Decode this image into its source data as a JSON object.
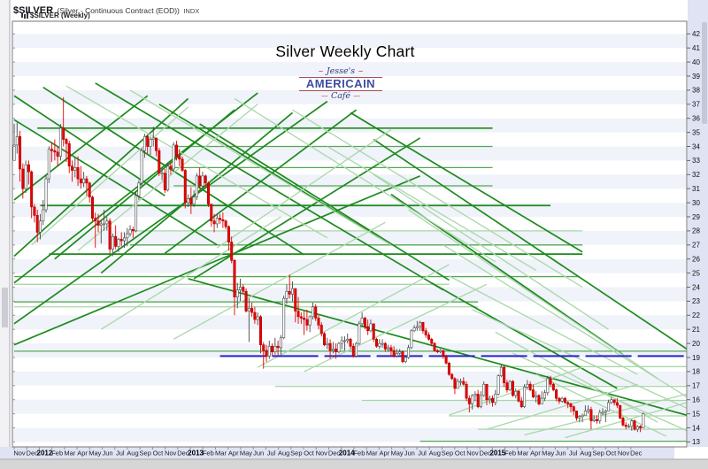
{
  "header": {
    "symbol": "$SILVER",
    "description": "(Silver - Continuous Contract (EOD))",
    "index_tag": "INDX",
    "series_label": "$SILVER (Weekly)"
  },
  "title": "Silver Weekly Chart",
  "logo": {
    "script_top": "Jesse's",
    "main": "AMERICAIN",
    "script_bottom": "Café"
  },
  "colors": {
    "up_body": "#ffffff",
    "up_border": "#4a4a4a",
    "down_body": "#e80000",
    "down_border": "#b00000",
    "trend_dark": "#1d8a1d",
    "trend_mid": "#55a855",
    "trend_light": "#a9d7a9",
    "support_blue": "#2626cc",
    "band": "#f0f3fa",
    "axis_bg": "#dfe3f3",
    "plot_border": "#777777",
    "label": "#111111",
    "month_label": "#222222"
  },
  "y_axis": {
    "min": 13,
    "max": 42,
    "ticks": [
      42,
      41,
      40,
      39,
      38,
      37,
      36,
      35,
      34,
      33,
      32,
      31,
      30,
      29,
      28,
      27,
      26,
      25,
      24,
      23,
      22,
      21,
      20,
      19,
      18,
      17,
      16,
      15,
      14,
      13
    ]
  },
  "x_axis": {
    "months": [
      "Nov",
      "Dec",
      "2012",
      "Feb",
      "Mar",
      "Apr",
      "May",
      "Jun",
      "Jul",
      "Aug",
      "Sep",
      "Oct",
      "Nov",
      "Dec",
      "2013",
      "Feb",
      "Mar",
      "Apr",
      "May",
      "Jun",
      "Jul",
      "Aug",
      "Sep",
      "Oct",
      "Nov",
      "Dec",
      "2014",
      "Feb",
      "Mar",
      "Apr",
      "May",
      "Jun",
      "Jul",
      "Aug",
      "Sep",
      "Oct",
      "Nov",
      "Dec",
      "2015",
      "Feb",
      "Mar",
      "Apr",
      "May",
      "Jun",
      "Jul",
      "Aug",
      "Sep",
      "Oct",
      "Nov",
      "Dec"
    ]
  },
  "chart_data": {
    "type": "candlestick",
    "title": "Silver Weekly Chart",
    "symbol": "$SILVER",
    "timeframe": "Weekly",
    "date_range": "Nov 2011 - Dec 2015",
    "ylim": [
      13,
      42
    ],
    "first_open": 33.0,
    "high": [
      35.6,
      35.7,
      35.1,
      32.8,
      33.0,
      33.0,
      32.3,
      29.9,
      29.5,
      29.2,
      30.2,
      32.0,
      34.0,
      34.3,
      34.5,
      34.0,
      35.6,
      37.5,
      34.6,
      34.4,
      33.0,
      33.2,
      33.3,
      32.6,
      32.2,
      31.9,
      31.5,
      30.5,
      29.3,
      29.2,
      28.8,
      29.5,
      29.0,
      28.9,
      27.8,
      28.4,
      27.5,
      27.9,
      27.9,
      28.2,
      28.4,
      28.3,
      30.8,
      31.6,
      33.9,
      34.9,
      34.8,
      34.7,
      35.4,
      34.6,
      33.9,
      32.5,
      32.4,
      32.8,
      32.9,
      34.3,
      34.4,
      33.8,
      33.3,
      32.4,
      30.6,
      31.1,
      30.9,
      32.1,
      32.5,
      32.2,
      32.0,
      31.5,
      29.9,
      29.2,
      29.2,
      29.2,
      29.3,
      28.8,
      28.4,
      27.6,
      26.0,
      24.3,
      24.6,
      24.2,
      23.9,
      23.2,
      22.9,
      22.6,
      22.2,
      22.0,
      20.1,
      19.9,
      20.2,
      20.0,
      20.4,
      20.2,
      20.6,
      23.4,
      24.2,
      24.9,
      24.4,
      23.9,
      23.3,
      22.2,
      22.3,
      22.4,
      22.0,
      22.9,
      22.8,
      22.0,
      21.5,
      20.8,
      20.4,
      20.3,
      20.1,
      20.0,
      20.1,
      20.5,
      20.5,
      20.7,
      20.4,
      20.0,
      20.1,
      21.6,
      22.2,
      21.9,
      21.7,
      21.7,
      21.4,
      20.4,
      20.3,
      20.3,
      20.1,
      19.9,
      19.9,
      19.8,
      19.6,
      19.6,
      19.5,
      19.1,
      19.9,
      21.0,
      21.3,
      21.6,
      21.6,
      21.5,
      21.1,
      20.8,
      20.4,
      20.1,
      19.6,
      19.6,
      19.5,
      19.2,
      18.7,
      17.9,
      17.6,
      17.5,
      17.5,
      17.6,
      17.3,
      16.3,
      16.4,
      16.6,
      16.7,
      16.6,
      17.3,
      17.1,
      16.3,
      16.3,
      16.7,
      17.8,
      18.5,
      18.4,
      17.4,
      17.4,
      17.4,
      16.8,
      16.7,
      16.2,
      17.1,
      17.4,
      17.3,
      17.1,
      16.6,
      16.4,
      16.6,
      16.7,
      17.7,
      17.7,
      17.2,
      16.8,
      16.2,
      16.2,
      16.2,
      15.9,
      15.8,
      15.6,
      15.2,
      14.9,
      15.0,
      15.6,
      15.6,
      15.5,
      14.9,
      14.9,
      15.3,
      15.4,
      15.3,
      16.0,
      16.2,
      16.0,
      16.1,
      15.6,
      14.8,
      14.4,
      14.3,
      14.6,
      14.6,
      14.2,
      14.2,
      15.1
    ],
    "low": [
      33.0,
      33.5,
      31.5,
      30.3,
      30.7,
      31.3,
      28.9,
      28.6,
      27.2,
      27.4,
      28.4,
      29.3,
      31.4,
      32.9,
      33.0,
      32.6,
      33.0,
      34.0,
      32.9,
      32.1,
      31.5,
      31.8,
      31.2,
      31.0,
      31.1,
      30.5,
      30.0,
      28.7,
      26.8,
      27.9,
      27.1,
      28.0,
      28.0,
      26.4,
      26.2,
      26.7,
      26.5,
      26.9,
      26.8,
      26.9,
      27.6,
      27.5,
      27.9,
      30.2,
      31.2,
      33.2,
      33.5,
      33.4,
      34.0,
      33.3,
      31.9,
      31.6,
      30.7,
      30.8,
      32.0,
      32.3,
      33.0,
      32.6,
      32.2,
      29.6,
      29.7,
      29.2,
      29.7,
      30.2,
      31.0,
      31.0,
      31.1,
      29.7,
      28.3,
      27.9,
      28.2,
      28.5,
      28.2,
      28.1,
      26.6,
      25.7,
      22.0,
      22.5,
      23.0,
      23.5,
      22.2,
      20.1,
      21.9,
      21.4,
      21.3,
      19.3,
      18.2,
      18.7,
      18.9,
      19.1,
      19.2,
      19.1,
      19.2,
      20.3,
      22.8,
      23.2,
      23.0,
      21.5,
      21.4,
      21.4,
      20.6,
      20.9,
      20.8,
      21.7,
      21.6,
      21.0,
      20.5,
      19.8,
      19.6,
      18.9,
      19.3,
      18.9,
      19.3,
      19.6,
      19.5,
      20.0,
      19.6,
      19.0,
      19.0,
      19.9,
      21.2,
      21.0,
      20.6,
      20.8,
      20.1,
      19.7,
      19.6,
      19.7,
      19.4,
      19.4,
      19.1,
      19.0,
      19.0,
      19.2,
      18.6,
      18.6,
      18.9,
      19.6,
      20.8,
      20.9,
      20.9,
      20.7,
      20.4,
      20.2,
      19.8,
      19.4,
      19.3,
      19.3,
      18.9,
      18.5,
      17.7,
      17.4,
      16.4,
      16.8,
      17.0,
      17.0,
      15.9,
      15.1,
      15.3,
      15.9,
      15.4,
      15.4,
      16.2,
      15.6,
      15.7,
      15.5,
      15.6,
      16.3,
      17.6,
      16.9,
      16.5,
      16.6,
      16.2,
      16.1,
      15.8,
      15.4,
      15.4,
      16.7,
      16.6,
      16.1,
      15.8,
      15.6,
      15.7,
      15.9,
      16.3,
      16.9,
      16.6,
      15.9,
      15.7,
      15.8,
      15.7,
      15.4,
      15.1,
      14.9,
      14.5,
      14.4,
      14.4,
      15.0,
      15.0,
      13.9,
      14.4,
      14.3,
      14.3,
      14.9,
      14.4,
      15.2,
      15.7,
      15.6,
      15.4,
      14.6,
      14.1,
      13.9,
      14.0,
      13.8,
      13.8,
      13.7,
      13.7,
      14.0
    ],
    "close": [
      34.1,
      34.7,
      32.4,
      31.0,
      32.7,
      32.2,
      29.7,
      29.1,
      27.9,
      28.7,
      29.5,
      31.7,
      33.8,
      33.7,
      33.6,
      33.3,
      35.3,
      34.5,
      34.2,
      32.6,
      32.3,
      32.5,
      31.7,
      31.4,
      31.7,
      31.4,
      30.4,
      28.9,
      28.7,
      28.4,
      28.5,
      28.5,
      28.7,
      26.7,
      27.6,
      26.9,
      27.4,
      27.3,
      27.5,
      27.8,
      28.1,
      28.0,
      30.5,
      31.4,
      33.7,
      34.7,
      34.0,
      34.5,
      34.6,
      33.7,
      32.1,
      32.1,
      30.9,
      32.6,
      32.4,
      34.1,
      33.3,
      33.1,
      32.3,
      30.0,
      30.3,
      29.9,
      30.4,
      31.9,
      31.2,
      31.9,
      31.4,
      29.9,
      28.7,
      28.5,
      28.9,
      28.8,
      28.7,
      28.3,
      27.2,
      25.9,
      23.3,
      23.8,
      24.0,
      23.7,
      22.3,
      22.5,
      22.2,
      21.7,
      21.9,
      19.9,
      19.5,
      19.1,
      19.8,
      19.4,
      19.8,
      19.7,
      20.4,
      23.2,
      23.7,
      23.5,
      23.9,
      22.3,
      21.9,
      21.8,
      21.7,
      21.3,
      21.9,
      22.6,
      21.8,
      21.3,
      20.7,
      19.9,
      20.0,
      19.5,
      19.6,
      19.4,
      20.0,
      20.2,
      20.2,
      20.3,
      19.8,
      19.1,
      20.0,
      21.4,
      21.8,
      21.2,
      20.9,
      21.4,
      20.3,
      19.8,
      20.0,
      20.0,
      19.6,
      19.7,
      19.5,
      19.1,
      19.3,
      19.4,
      18.7,
      19.0,
      19.7,
      20.9,
      21.1,
      21.2,
      21.5,
      20.9,
      20.6,
      20.3,
      20.0,
      19.5,
      19.4,
      19.5,
      19.1,
      18.6,
      17.8,
      17.5,
      16.8,
      17.3,
      17.3,
      17.1,
      16.1,
      15.7,
      16.3,
      16.4,
      15.5,
      16.3,
      17.1,
      16.0,
      16.1,
      15.8,
      16.4,
      17.7,
      18.3,
      17.2,
      16.7,
      17.3,
      16.3,
      16.6,
      15.9,
      15.5,
      16.9,
      17.1,
      16.7,
      16.2,
      16.3,
      15.7,
      16.1,
      16.5,
      17.5,
      17.1,
      16.7,
      16.1,
      15.9,
      16.1,
      15.8,
      15.7,
      15.5,
      15.2,
      14.7,
      14.8,
      14.9,
      15.2,
      15.3,
      14.5,
      14.6,
      14.5,
      15.1,
      15.1,
      15.2,
      15.8,
      16.0,
      15.8,
      15.6,
      14.7,
      14.2,
      14.1,
      14.1,
      14.5,
      13.9,
      14.1,
      14.0,
      15.0
    ],
    "support_line": {
      "price": 19.1,
      "from_week": 71,
      "to_week": 232,
      "style": "blue-dashed"
    },
    "trendlines": [
      [
        8,
        35.3,
        165,
        35.3,
        "d"
      ],
      [
        9,
        29.8,
        185,
        29.8,
        "d"
      ],
      [
        12,
        26.35,
        196,
        26.35,
        "d"
      ],
      [
        55,
        34.0,
        165,
        34.0,
        "m"
      ],
      [
        55,
        32.5,
        165,
        32.5,
        "m"
      ],
      [
        55,
        31.2,
        165,
        31.2,
        "m"
      ],
      [
        40,
        28.0,
        196,
        28.0,
        "l"
      ],
      [
        40,
        27.0,
        196,
        27.0,
        "m"
      ],
      [
        0,
        24.75,
        195,
        24.75,
        "m"
      ],
      [
        0,
        24.2,
        150,
        24.2,
        "l"
      ],
      [
        0,
        22.95,
        160,
        22.95,
        "m"
      ],
      [
        0,
        22.6,
        160,
        22.6,
        "l"
      ],
      [
        0,
        19.45,
        232,
        19.45,
        "m"
      ],
      [
        86,
        18.35,
        232,
        18.35,
        "l"
      ],
      [
        90,
        16.95,
        232,
        16.95,
        "l"
      ],
      [
        120,
        15.95,
        232,
        15.95,
        "l"
      ],
      [
        150,
        14.85,
        232,
        14.85,
        "l"
      ],
      [
        160,
        13.9,
        232,
        13.9,
        "l"
      ],
      [
        140,
        13.05,
        232,
        13.05,
        "m"
      ],
      [
        0,
        35.9,
        70,
        27.0,
        "d"
      ],
      [
        0,
        37.6,
        52,
        30.5,
        "d"
      ],
      [
        10,
        38.2,
        100,
        26.3,
        "d"
      ],
      [
        28,
        38.5,
        148,
        23.8,
        "d"
      ],
      [
        50,
        37.0,
        126,
        27.5,
        "d"
      ],
      [
        64,
        35.6,
        150,
        24.5,
        "d"
      ],
      [
        116,
        36.4,
        196,
        26.5,
        "d"
      ],
      [
        124,
        34.5,
        232,
        19.6,
        "d"
      ],
      [
        60,
        24.6,
        232,
        14.9,
        "d"
      ],
      [
        130,
        30.6,
        210,
        19.2,
        "d"
      ],
      [
        144,
        24.3,
        208,
        16.8,
        "d"
      ],
      [
        0,
        26.2,
        60,
        37.4,
        "d"
      ],
      [
        0,
        21.4,
        108,
        37.2,
        "d"
      ],
      [
        0,
        24.3,
        84,
        37.8,
        "d"
      ],
      [
        14,
        26.0,
        76,
        36.6,
        "d"
      ],
      [
        30,
        25.0,
        96,
        36.4,
        "d"
      ],
      [
        52,
        26.4,
        118,
        36.6,
        "d"
      ],
      [
        0,
        30.2,
        46,
        37.6,
        "d"
      ],
      [
        62,
        24.6,
        140,
        34.6,
        "d"
      ],
      [
        0,
        19.9,
        140,
        31.9,
        "d"
      ],
      [
        18,
        38.3,
        108,
        27.5,
        "l"
      ],
      [
        40,
        38.0,
        130,
        27.0,
        "l"
      ],
      [
        76,
        37.4,
        166,
        25.8,
        "l"
      ],
      [
        96,
        36.6,
        196,
        24.0,
        "l"
      ],
      [
        108,
        34.0,
        180,
        25.2,
        "l"
      ],
      [
        124,
        32.0,
        205,
        21.0,
        "l"
      ],
      [
        136,
        29.5,
        222,
        17.5,
        "l"
      ],
      [
        148,
        27.0,
        232,
        16.2,
        "l"
      ],
      [
        150,
        24.8,
        215,
        17.8,
        "l"
      ],
      [
        158,
        22.4,
        232,
        15.4,
        "l"
      ],
      [
        166,
        20.8,
        222,
        14.4,
        "l"
      ],
      [
        172,
        19.3,
        232,
        13.8,
        "l"
      ],
      [
        180,
        17.8,
        225,
        13.4,
        "l"
      ],
      [
        30,
        21.0,
        92,
        29.0,
        "l"
      ],
      [
        55,
        20.3,
        128,
        28.6,
        "l"
      ],
      [
        84,
        18.3,
        150,
        25.6,
        "l"
      ],
      [
        100,
        18.0,
        163,
        24.2,
        "l"
      ],
      [
        150,
        14.9,
        196,
        18.3,
        "l"
      ],
      [
        163,
        13.9,
        215,
        17.1,
        "l"
      ],
      [
        176,
        13.5,
        232,
        16.4,
        "l"
      ],
      [
        190,
        13.3,
        232,
        15.8,
        "l"
      ],
      [
        6,
        27.0,
        60,
        36.8,
        "l"
      ],
      [
        22,
        26.6,
        84,
        37.0,
        "l"
      ],
      [
        70,
        26.8,
        130,
        35.2,
        "l"
      ]
    ]
  }
}
